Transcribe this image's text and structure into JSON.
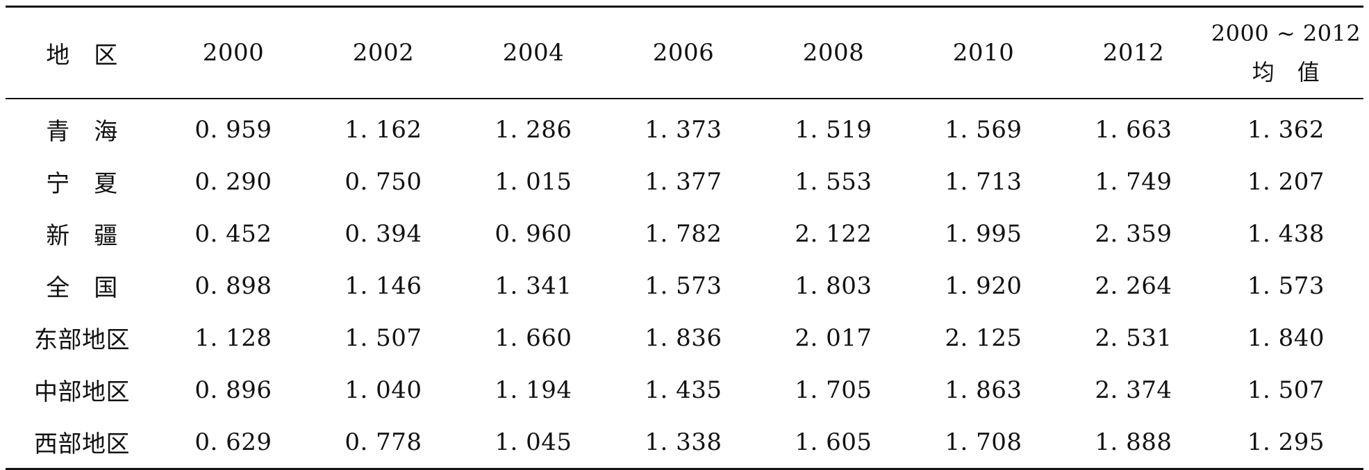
{
  "table": {
    "headers": {
      "region": "地　区",
      "years": [
        "2000",
        "2002",
        "2004",
        "2006",
        "2008",
        "2010",
        "2012"
      ],
      "average_line1": "2000 ~ 2012",
      "average_line2": "均　值"
    },
    "rows": [
      {
        "region": "青　海",
        "values": [
          "0. 959",
          "1. 162",
          "1. 286",
          "1. 373",
          "1. 519",
          "1. 569",
          "1. 663"
        ],
        "average": "1. 362"
      },
      {
        "region": "宁　夏",
        "values": [
          "0. 290",
          "0. 750",
          "1. 015",
          "1. 377",
          "1. 553",
          "1. 713",
          "1. 749"
        ],
        "average": "1. 207"
      },
      {
        "region": "新　疆",
        "values": [
          "0. 452",
          "0. 394",
          "0. 960",
          "1. 782",
          "2. 122",
          "1. 995",
          "2. 359"
        ],
        "average": "1. 438"
      },
      {
        "region": "全　国",
        "values": [
          "0. 898",
          "1. 146",
          "1. 341",
          "1. 573",
          "1. 803",
          "1. 920",
          "2. 264"
        ],
        "average": "1. 573"
      },
      {
        "region": "东部地区",
        "values": [
          "1. 128",
          "1. 507",
          "1. 660",
          "1. 836",
          "2. 017",
          "2. 125",
          "2. 531"
        ],
        "average": "1. 840"
      },
      {
        "region": "中部地区",
        "values": [
          "0. 896",
          "1. 040",
          "1. 194",
          "1. 435",
          "1. 705",
          "1. 863",
          "2. 374"
        ],
        "average": "1. 507"
      },
      {
        "region": "西部地区",
        "values": [
          "0. 629",
          "0. 778",
          "1. 045",
          "1. 338",
          "1. 605",
          "1. 708",
          "1. 888"
        ],
        "average": "1. 295"
      }
    ]
  }
}
